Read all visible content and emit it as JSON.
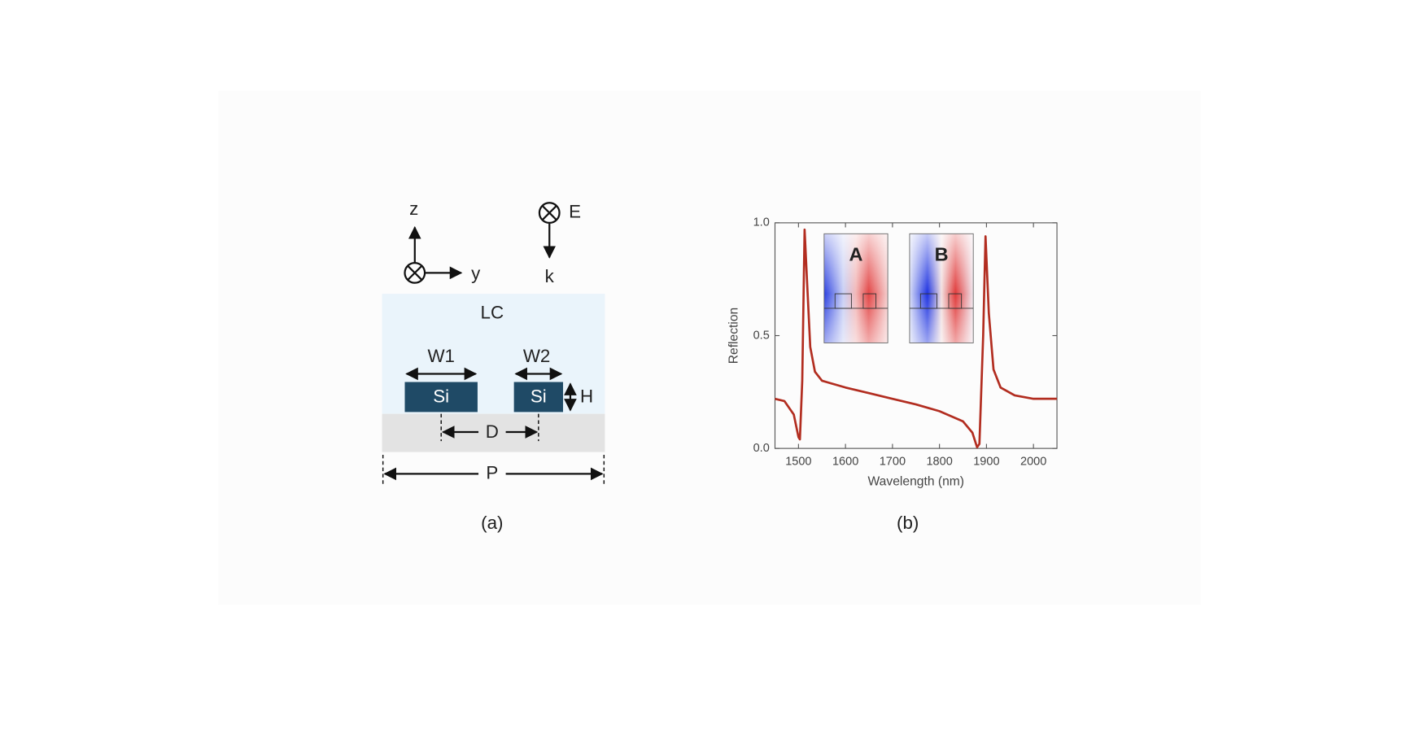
{
  "diagram": {
    "labels": {
      "z": "z",
      "y": "y",
      "E": "E",
      "k": "k",
      "LC": "LC",
      "W1": "W1",
      "W2": "W2",
      "H": "H",
      "D": "D",
      "P": "P",
      "Si1": "Si",
      "Si2": "Si"
    },
    "caption": "(a)"
  },
  "chart_data": {
    "type": "line",
    "caption": "(b)",
    "x_label": "Wavelength (nm)",
    "y_label": "Reflection",
    "annotations": [
      "A",
      "B"
    ],
    "x": [
      1450,
      1470,
      1490,
      1500,
      1503,
      1508,
      1513,
      1518,
      1525,
      1535,
      1550,
      1600,
      1650,
      1700,
      1750,
      1800,
      1850,
      1870,
      1880,
      1885,
      1893,
      1898,
      1905,
      1915,
      1930,
      1960,
      2000,
      2050
    ],
    "values": [
      0.22,
      0.21,
      0.15,
      0.05,
      0.04,
      0.3,
      0.97,
      0.75,
      0.45,
      0.34,
      0.3,
      0.27,
      0.245,
      0.22,
      0.195,
      0.165,
      0.12,
      0.07,
      0.005,
      0.02,
      0.5,
      0.94,
      0.6,
      0.35,
      0.27,
      0.235,
      0.22,
      0.22
    ],
    "color": "#b22d20",
    "xlim": [
      1450,
      2050
    ],
    "ylim": [
      0,
      1
    ],
    "xticks": [
      1500,
      1600,
      1700,
      1800,
      1900,
      2000
    ],
    "yticks": [
      {
        "value": 0,
        "label": "0.0"
      },
      {
        "value": 0.5,
        "label": "0.5"
      },
      {
        "value": 1,
        "label": "1.0"
      }
    ]
  }
}
